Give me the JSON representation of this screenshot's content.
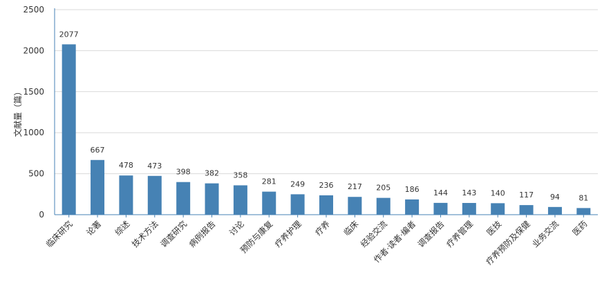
{
  "chart_data": {
    "type": "bar",
    "ylabel": "文献量（篇）",
    "ylim": [
      0,
      2500
    ],
    "yticks": [
      0,
      500,
      1000,
      1500,
      2000,
      2500
    ],
    "grid": true,
    "legend": "none",
    "bar_color": "#4682b4",
    "categories": [
      "临床研究",
      "论著",
      "综述",
      "技术方法",
      "调查研究",
      "病例报告",
      "讨论",
      "预防与康复",
      "疗养护理",
      "疗养",
      "临床",
      "经验交流",
      "作者·读者·编者",
      "调查报告",
      "疗养管理",
      "医技",
      "疗养预防及保健",
      "业务交流",
      "医药"
    ],
    "values": [
      2077,
      667,
      478,
      473,
      398,
      382,
      358,
      281,
      249,
      236,
      217,
      205,
      186,
      144,
      143,
      140,
      117,
      94,
      81
    ],
    "value_labels": [
      "2077",
      "667",
      "478",
      "473",
      "398",
      "382",
      "358",
      "281",
      "249",
      "236",
      "217",
      "205",
      "186",
      "144",
      "143",
      "140",
      "117",
      "94",
      "81"
    ]
  }
}
